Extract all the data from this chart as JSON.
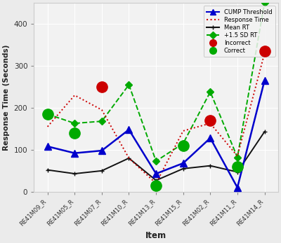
{
  "items": [
    "RE41M09_R",
    "RE41M05_R",
    "RE41M07_R",
    "RE41M10_R",
    "RE41M13_R",
    "RE41M15_R",
    "RE41M02_R",
    "RE41M11_R",
    "RE41M14_R"
  ],
  "cump_threshold": [
    108,
    92,
    98,
    148,
    43,
    68,
    128,
    10,
    265
  ],
  "response_time": [
    155,
    230,
    195,
    80,
    20,
    145,
    163,
    85,
    330
  ],
  "mean_rt": [
    52,
    43,
    50,
    80,
    27,
    55,
    62,
    47,
    143
  ],
  "sd_rt": [
    185,
    163,
    168,
    255,
    73,
    115,
    238,
    82,
    450
  ],
  "incorrect": [
    null,
    null,
    250,
    null,
    null,
    null,
    170,
    null,
    335
  ],
  "correct": [
    185,
    140,
    null,
    null,
    15,
    110,
    null,
    60,
    null
  ],
  "ylim": [
    0,
    450
  ],
  "yticks": [
    0,
    100,
    200,
    300,
    400
  ],
  "xlabel": "Item",
  "ylabel": "Response Time (Seconds)",
  "bg_color": "#ebebeb",
  "plot_bg": "#f2f2f2",
  "grid_color": "#ffffff",
  "blue_color": "#0000cc",
  "red_color": "#cc0000",
  "black_color": "#111111",
  "green_color": "#00aa00"
}
